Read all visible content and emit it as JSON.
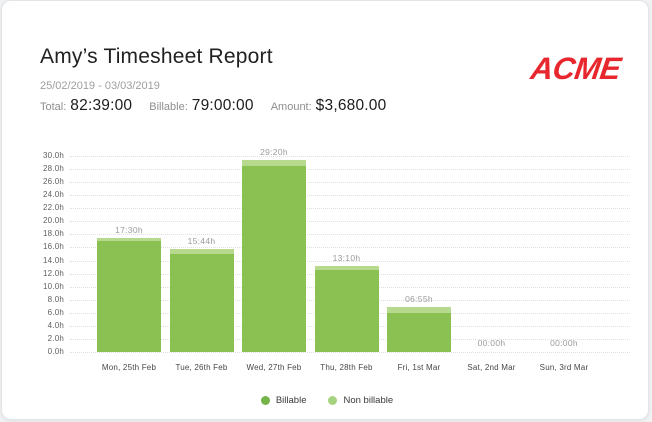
{
  "header": {
    "title": "Amy’s Timesheet Report",
    "date_range": "25/02/2019 - 03/03/2019",
    "stats": [
      {
        "label": "Total:",
        "value": "82:39:00"
      },
      {
        "label": "Billable:",
        "value": "79:00:00"
      },
      {
        "label": "Amount:",
        "value": "$3,680.00"
      }
    ],
    "logo_text": "ACME",
    "logo_color": "#e8262d"
  },
  "chart_data": {
    "type": "bar",
    "stacked": true,
    "categories": [
      "Mon, 25th Feb",
      "Tue, 26th Feb",
      "Wed, 27th Feb",
      "Thu, 28th Feb",
      "Fri, 1st Mar",
      "Sat, 2nd Mar",
      "Sun, 3rd Mar"
    ],
    "series": [
      {
        "name": "Billable",
        "color": "#8bc152",
        "values": [
          17.0,
          15.0,
          28.5,
          12.5,
          6.0,
          0,
          0
        ]
      },
      {
        "name": "Non billable",
        "color": "#b7d98e",
        "values": [
          0.5,
          0.7333,
          0.8333,
          0.6667,
          0.9167,
          0,
          0
        ]
      }
    ],
    "bar_labels": [
      "17:30h",
      "15:44h",
      "29:20h",
      "13:10h",
      "06:55h",
      "00:00h",
      "00:00h"
    ],
    "y_ticks": [
      "0.0h",
      "2.0h",
      "4.0h",
      "6.0h",
      "8.0h",
      "10.0h",
      "12.0h",
      "14.0h",
      "16.0h",
      "18.0h",
      "20.0h",
      "22.0h",
      "24.0h",
      "26.0h",
      "28.0h",
      "30.0h"
    ],
    "ylim": [
      0,
      30
    ],
    "grid": "dotted-horizontal",
    "legend": [
      {
        "label": "Billable",
        "color": "#76b44a"
      },
      {
        "label": "Non billable",
        "color": "#a6d37f"
      }
    ],
    "legend_position": "bottom"
  }
}
